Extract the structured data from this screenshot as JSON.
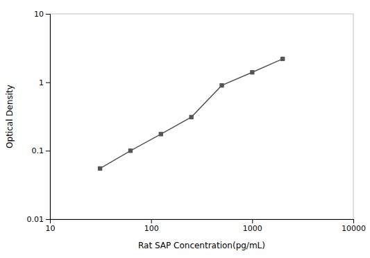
{
  "chart_data": {
    "type": "line",
    "x": [
      31.25,
      62.5,
      125,
      250,
      500,
      1000,
      2000
    ],
    "values": [
      0.055,
      0.1,
      0.175,
      0.31,
      0.9,
      1.4,
      2.2
    ],
    "xlabel": "Rat SAP Concentration(pg/mL)",
    "ylabel": "Optical Density",
    "xlim": [
      10,
      10000
    ],
    "ylim": [
      0.01,
      10
    ],
    "xticks": [
      10,
      100,
      1000,
      10000
    ],
    "yticks": [
      0.01,
      0.1,
      1,
      10
    ],
    "log": true,
    "grid": false,
    "color": "#555555",
    "marker": "square"
  }
}
